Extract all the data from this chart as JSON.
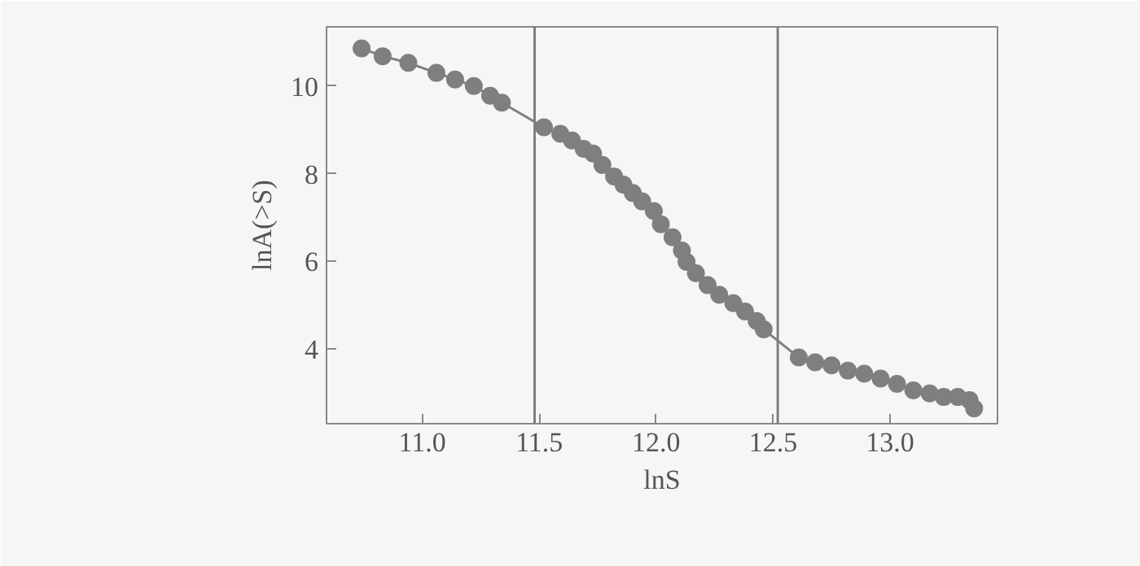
{
  "chart_data": {
    "type": "line",
    "xlabel": "lnS",
    "ylabel": "lnA(>S)",
    "x": [
      10.74,
      10.83,
      10.94,
      11.06,
      11.14,
      11.22,
      11.29,
      11.34,
      11.52,
      11.59,
      11.64,
      11.69,
      11.73,
      11.77,
      11.82,
      11.86,
      11.9,
      11.94,
      11.99,
      12.02,
      12.07,
      12.11,
      12.13,
      12.17,
      12.22,
      12.27,
      12.33,
      12.38,
      12.43,
      12.46,
      12.61,
      12.68,
      12.75,
      12.82,
      12.89,
      12.96,
      13.03,
      13.1,
      13.17,
      13.23,
      13.29,
      13.34,
      13.36
    ],
    "series": [
      {
        "color": "#7f7f7f",
        "values": [
          10.86,
          10.68,
          10.53,
          10.3,
          10.15,
          10.0,
          9.78,
          9.62,
          9.06,
          8.91,
          8.76,
          8.57,
          8.46,
          8.2,
          7.94,
          7.75,
          7.56,
          7.37,
          7.15,
          6.85,
          6.55,
          6.25,
          5.99,
          5.73,
          5.46,
          5.24,
          5.05,
          4.86,
          4.64,
          4.45,
          3.81,
          3.7,
          3.63,
          3.51,
          3.44,
          3.33,
          3.21,
          3.06,
          2.99,
          2.91,
          2.91,
          2.84,
          2.65
        ]
      }
    ],
    "xlim": [
      10.59,
      13.46
    ],
    "ylim": [
      2.3,
      11.35
    ],
    "xticks": [
      {
        "value": 11,
        "label": "11.0"
      },
      11.5,
      {
        "value": 12,
        "label": "12.0"
      },
      12.5,
      {
        "value": 13,
        "label": "13.0"
      }
    ],
    "yticks": [
      4,
      6,
      8,
      10
    ],
    "ref_lines": [
      {
        "axis": "x",
        "value": 11.48,
        "color": "#7f7f7f"
      },
      {
        "axis": "x",
        "value": 12.52,
        "color": "#7f7f7f"
      }
    ],
    "marker": "circle",
    "line_style": "solid",
    "grid": false
  }
}
